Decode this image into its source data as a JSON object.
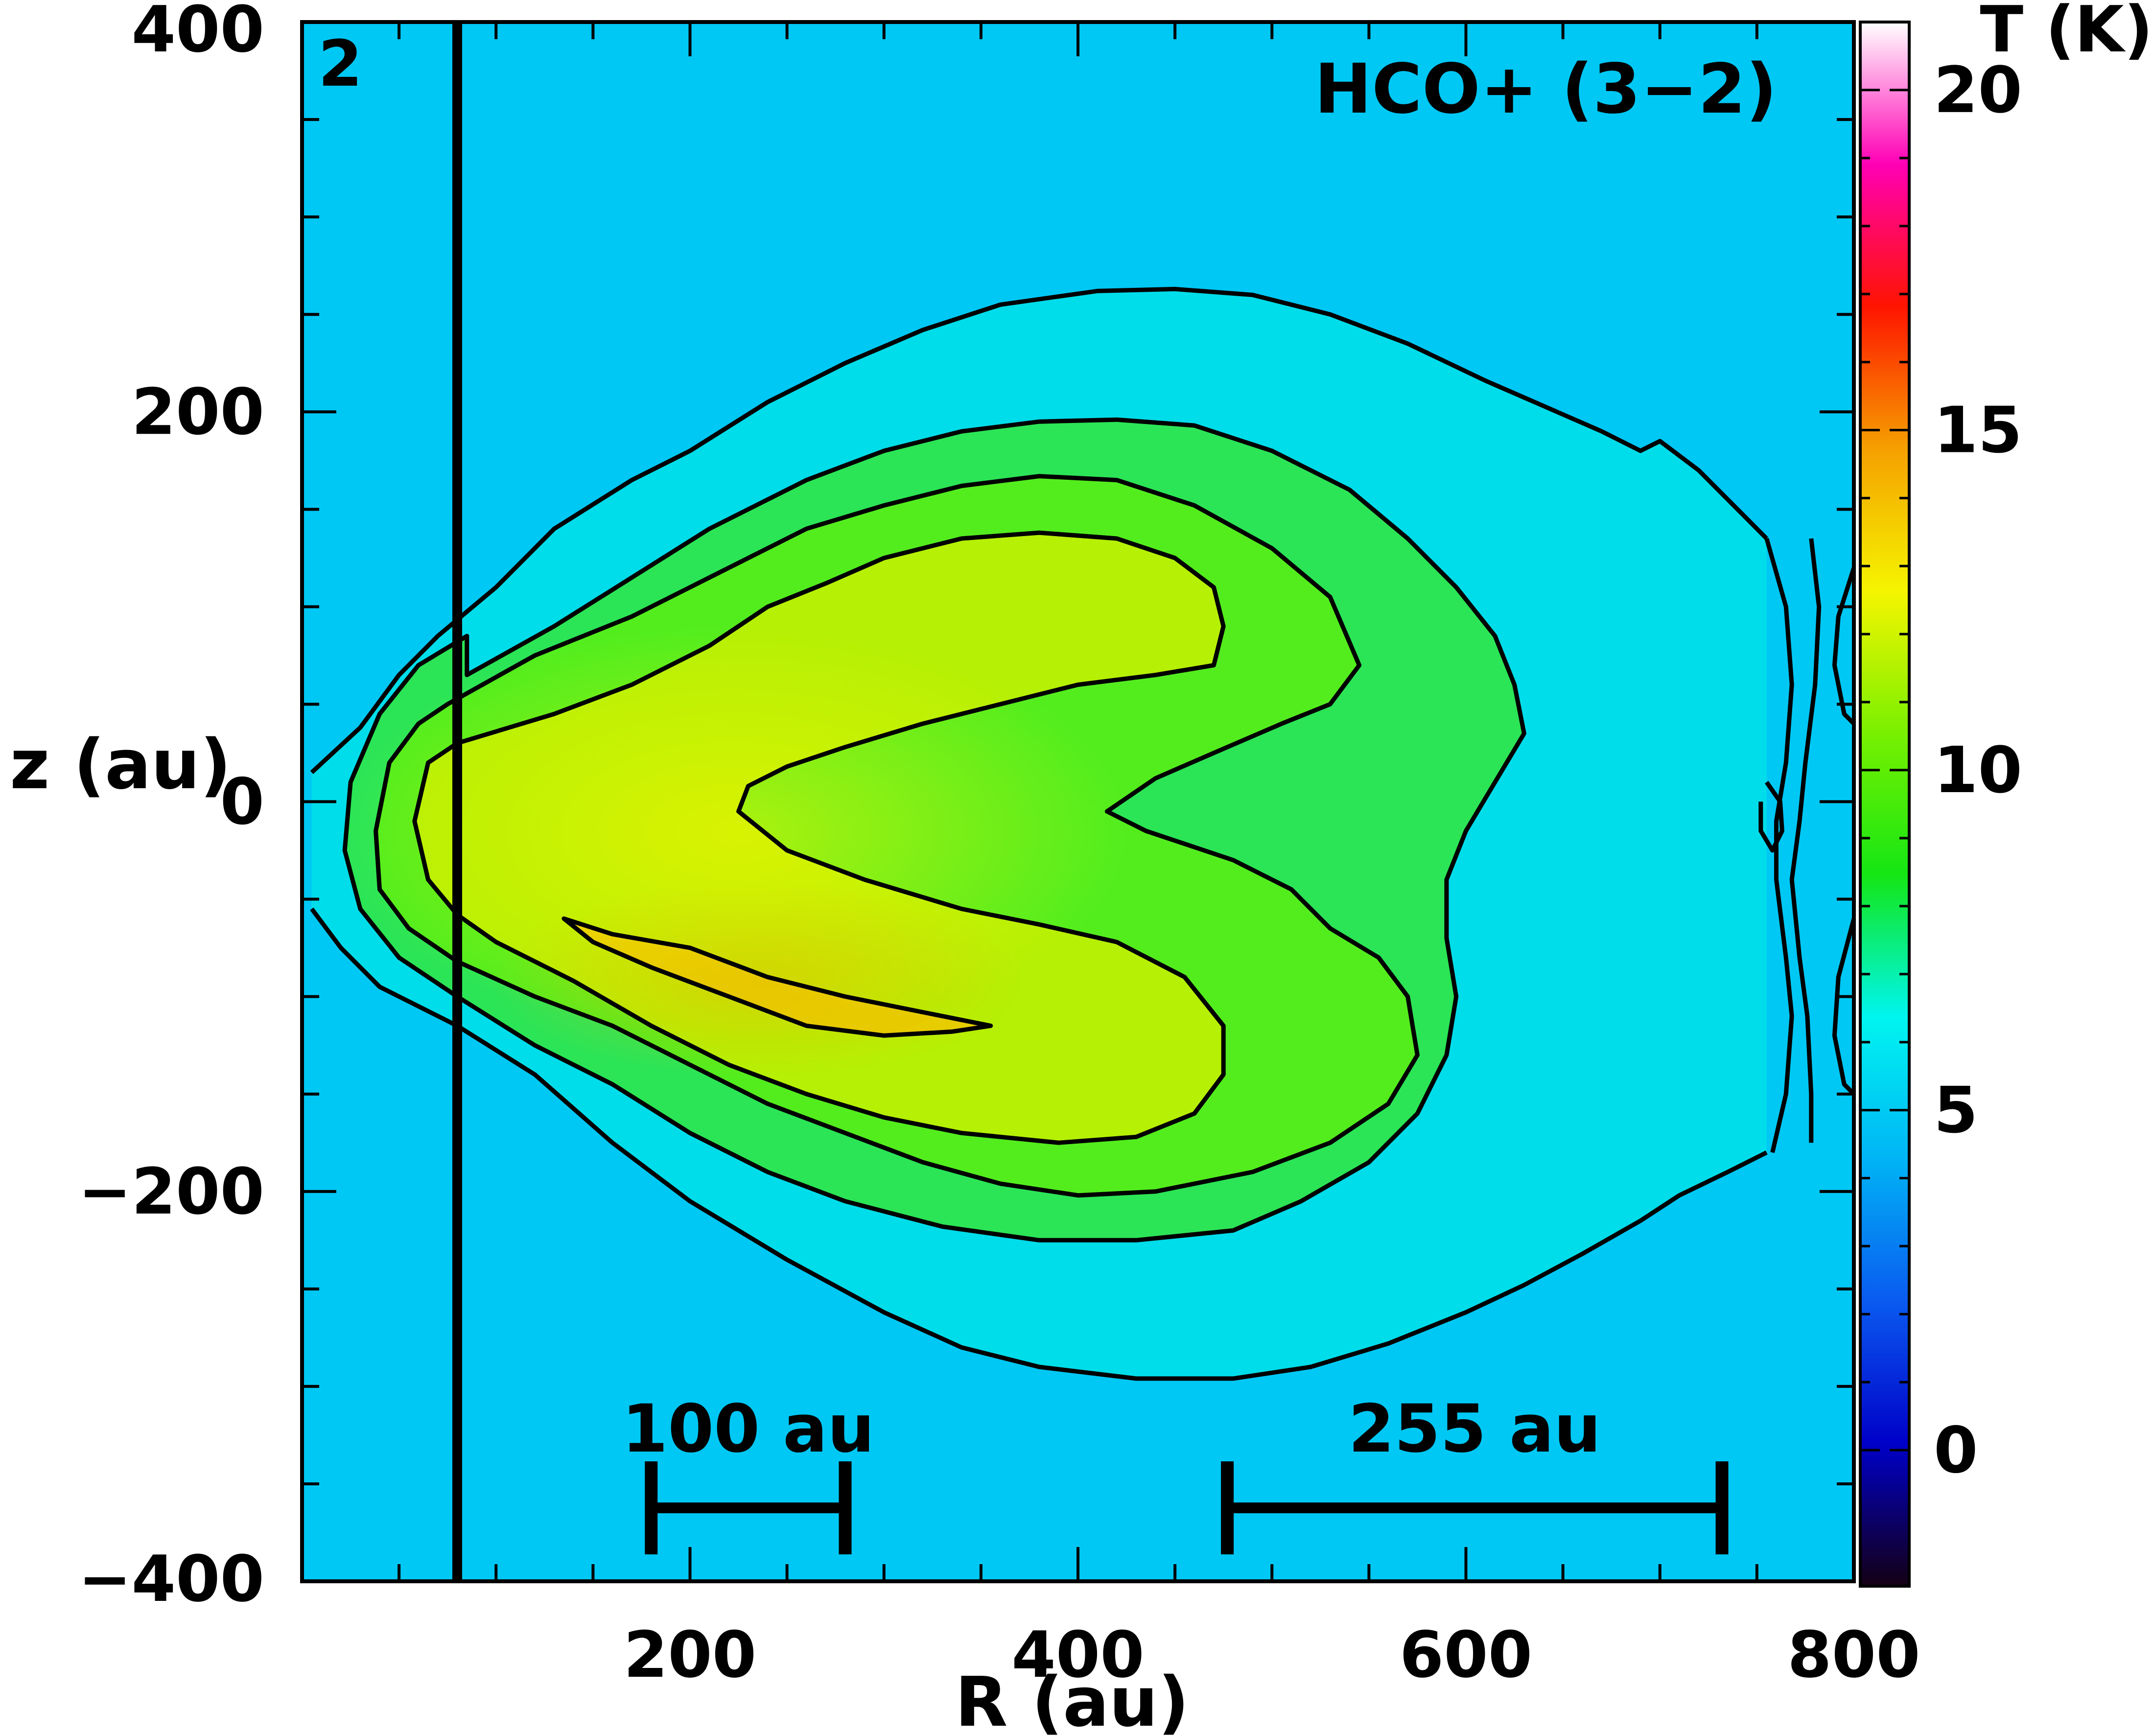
{
  "chart_data": {
    "type": "heatmap",
    "panel_label": "2",
    "title": "HCO+ (3−2)",
    "xlabel": "R (au)",
    "ylabel": "z (au)",
    "xlim": [
      0,
      800
    ],
    "ylim": [
      -400,
      400
    ],
    "x_ticks": [
      "200",
      "400",
      "600",
      "800"
    ],
    "y_ticks": [
      "400",
      "200",
      "0",
      "−200",
      "−400"
    ],
    "x_tick_values": [
      200,
      400,
      600,
      800
    ],
    "y_tick_values": [
      400,
      200,
      0,
      -200,
      -400
    ],
    "colorbar": {
      "label": "T (K)",
      "range": [
        -2,
        21
      ],
      "ticks": [
        "20",
        "15",
        "10",
        "5",
        "0"
      ],
      "tick_values": [
        20,
        15,
        10,
        5,
        0
      ],
      "colors": [
        "#140014",
        "#0000c8",
        "#0a5af0",
        "#00b4f5",
        "#00f5f0",
        "#14e614",
        "#78f000",
        "#f5f500",
        "#f5a000",
        "#ff1400",
        "#ff00b4",
        "#ffffff"
      ]
    },
    "peak_temperature_K": 12.5,
    "vertical_line_R": 80,
    "contour_levels_K": [
      4,
      6,
      8,
      10,
      12
    ],
    "contours": [
      {
        "level": 4,
        "points": [
          [
            5,
            15
          ],
          [
            30,
            38
          ],
          [
            50,
            65
          ],
          [
            70,
            85
          ],
          [
            100,
            110
          ],
          [
            130,
            140
          ],
          [
            170,
            165
          ],
          [
            200,
            180
          ],
          [
            240,
            205
          ],
          [
            280,
            225
          ],
          [
            320,
            242
          ],
          [
            360,
            255
          ],
          [
            410,
            262
          ],
          [
            450,
            263
          ],
          [
            490,
            260
          ],
          [
            530,
            250
          ],
          [
            570,
            235
          ],
          [
            610,
            216
          ],
          [
            640,
            203
          ],
          [
            670,
            190
          ],
          [
            690,
            180
          ],
          [
            700,
            185
          ],
          [
            720,
            170
          ],
          [
            740,
            150
          ],
          [
            755,
            135
          ]
        ]
      },
      {
        "level": 4,
        "points": [
          [
            755,
            -180
          ],
          [
            735,
            -190
          ],
          [
            710,
            -202
          ],
          [
            690,
            -215
          ],
          [
            660,
            -232
          ],
          [
            630,
            -248
          ],
          [
            600,
            -262
          ],
          [
            560,
            -278
          ],
          [
            520,
            -290
          ],
          [
            480,
            -296
          ],
          [
            430,
            -296
          ],
          [
            380,
            -290
          ],
          [
            340,
            -280
          ],
          [
            300,
            -262
          ],
          [
            250,
            -235
          ],
          [
            200,
            -205
          ],
          [
            160,
            -175
          ],
          [
            120,
            -140
          ],
          [
            80,
            -115
          ],
          [
            40,
            -95
          ],
          [
            20,
            -75
          ],
          [
            5,
            -55
          ]
        ]
      },
      {
        "level": 6,
        "points": [
          [
            85,
            65
          ],
          [
            130,
            90
          ],
          [
            170,
            115
          ],
          [
            210,
            140
          ],
          [
            260,
            165
          ],
          [
            300,
            180
          ],
          [
            340,
            190
          ],
          [
            380,
            195
          ],
          [
            420,
            196
          ],
          [
            460,
            193
          ],
          [
            500,
            180
          ],
          [
            540,
            160
          ],
          [
            570,
            135
          ],
          [
            595,
            110
          ],
          [
            615,
            85
          ],
          [
            625,
            60
          ],
          [
            630,
            35
          ],
          [
            615,
            10
          ],
          [
            600,
            -15
          ],
          [
            590,
            -40
          ],
          [
            590,
            -70
          ],
          [
            595,
            -100
          ],
          [
            590,
            -130
          ],
          [
            575,
            -160
          ],
          [
            550,
            -185
          ],
          [
            515,
            -205
          ],
          [
            480,
            -220
          ],
          [
            430,
            -225
          ],
          [
            380,
            -225
          ],
          [
            330,
            -218
          ],
          [
            280,
            -205
          ],
          [
            240,
            -190
          ],
          [
            200,
            -170
          ],
          [
            160,
            -145
          ],
          [
            120,
            -125
          ],
          [
            80,
            -100
          ],
          [
            50,
            -80
          ],
          [
            30,
            -55
          ],
          [
            22,
            -25
          ],
          [
            25,
            10
          ],
          [
            40,
            45
          ],
          [
            60,
            70
          ],
          [
            85,
            85
          ]
        ]
      },
      {
        "level": 8,
        "points": [
          [
            75,
            50
          ],
          [
            120,
            75
          ],
          [
            170,
            95
          ],
          [
            210,
            115
          ],
          [
            260,
            140
          ],
          [
            300,
            152
          ],
          [
            340,
            162
          ],
          [
            380,
            167
          ],
          [
            420,
            165
          ],
          [
            460,
            152
          ],
          [
            500,
            130
          ],
          [
            530,
            105
          ],
          [
            545,
            70
          ],
          [
            530,
            50
          ],
          [
            505,
            40
          ],
          [
            470,
            25
          ],
          [
            440,
            12
          ],
          [
            415,
            -5
          ],
          [
            435,
            -15
          ],
          [
            480,
            -30
          ],
          [
            510,
            -45
          ],
          [
            530,
            -65
          ],
          [
            555,
            -80
          ],
          [
            570,
            -100
          ],
          [
            575,
            -130
          ],
          [
            560,
            -155
          ],
          [
            530,
            -175
          ],
          [
            490,
            -190
          ],
          [
            440,
            -200
          ],
          [
            400,
            -202
          ],
          [
            360,
            -196
          ],
          [
            320,
            -185
          ],
          [
            280,
            -170
          ],
          [
            240,
            -155
          ],
          [
            200,
            -135
          ],
          [
            160,
            -115
          ],
          [
            120,
            -100
          ],
          [
            80,
            -82
          ],
          [
            55,
            -65
          ],
          [
            40,
            -45
          ],
          [
            38,
            -15
          ],
          [
            45,
            20
          ],
          [
            60,
            40
          ]
        ]
      },
      {
        "level": 10,
        "points": [
          [
            80,
            30
          ],
          [
            130,
            45
          ],
          [
            170,
            60
          ],
          [
            210,
            80
          ],
          [
            240,
            100
          ],
          [
            270,
            112
          ],
          [
            300,
            125
          ],
          [
            340,
            135
          ],
          [
            380,
            138
          ],
          [
            420,
            135
          ],
          [
            450,
            125
          ],
          [
            470,
            110
          ],
          [
            475,
            90
          ],
          [
            470,
            70
          ],
          [
            440,
            65
          ],
          [
            400,
            60
          ],
          [
            360,
            50
          ],
          [
            320,
            40
          ],
          [
            280,
            28
          ],
          [
            250,
            18
          ],
          [
            230,
            8
          ],
          [
            225,
            -5
          ],
          [
            250,
            -25
          ],
          [
            290,
            -40
          ],
          [
            340,
            -55
          ],
          [
            380,
            -63
          ],
          [
            420,
            -72
          ],
          [
            455,
            -90
          ],
          [
            475,
            -115
          ],
          [
            475,
            -140
          ],
          [
            460,
            -160
          ],
          [
            430,
            -172
          ],
          [
            390,
            -175
          ],
          [
            340,
            -170
          ],
          [
            300,
            -162
          ],
          [
            260,
            -150
          ],
          [
            220,
            -135
          ],
          [
            180,
            -115
          ],
          [
            140,
            -92
          ],
          [
            100,
            -72
          ],
          [
            80,
            -58
          ],
          [
            65,
            -40
          ],
          [
            58,
            -10
          ],
          [
            65,
            20
          ]
        ]
      },
      {
        "level": 12,
        "points": [
          [
            135,
            -60
          ],
          [
            160,
            -68
          ],
          [
            200,
            -75
          ],
          [
            240,
            -90
          ],
          [
            280,
            -100
          ],
          [
            320,
            -108
          ],
          [
            355,
            -115
          ],
          [
            335,
            -118
          ],
          [
            300,
            -120
          ],
          [
            260,
            -115
          ],
          [
            220,
            -100
          ],
          [
            180,
            -85
          ],
          [
            150,
            -72
          ],
          [
            135,
            -60
          ]
        ]
      },
      {
        "level": 4,
        "points": [
          [
            755,
            135
          ],
          [
            765,
            100
          ],
          [
            768,
            60
          ],
          [
            765,
            20
          ],
          [
            760,
            -10
          ],
          [
            760,
            -40
          ],
          [
            765,
            -80
          ],
          [
            768,
            -110
          ],
          [
            765,
            -150
          ],
          [
            758,
            -180
          ]
        ]
      },
      {
        "level": 4,
        "points": [
          [
            778,
            135
          ],
          [
            782,
            100
          ],
          [
            780,
            60
          ],
          [
            775,
            20
          ],
          [
            772,
            -10
          ],
          [
            768,
            -40
          ],
          [
            772,
            -80
          ],
          [
            776,
            -110
          ],
          [
            778,
            -150
          ],
          [
            778,
            -175
          ]
        ]
      },
      {
        "level": 4,
        "points": [
          [
            755,
            10
          ],
          [
            762,
            0
          ],
          [
            763,
            -15
          ],
          [
            758,
            -25
          ],
          [
            752,
            -15
          ],
          [
            752,
            0
          ]
        ]
      },
      {
        "level": 4,
        "points": [
          [
            800,
            120
          ],
          [
            792,
            95
          ],
          [
            790,
            70
          ],
          [
            795,
            45
          ],
          [
            800,
            40
          ]
        ]
      },
      {
        "level": 4,
        "points": [
          [
            800,
            -60
          ],
          [
            792,
            -90
          ],
          [
            790,
            -120
          ],
          [
            795,
            -145
          ],
          [
            800,
            -150
          ]
        ]
      }
    ]
  },
  "scale_bars": [
    {
      "label": "100 au",
      "length_au": 100,
      "start_R": 180
    },
    {
      "label": "255 au",
      "length_au": 255,
      "start_R": 477
    }
  ]
}
